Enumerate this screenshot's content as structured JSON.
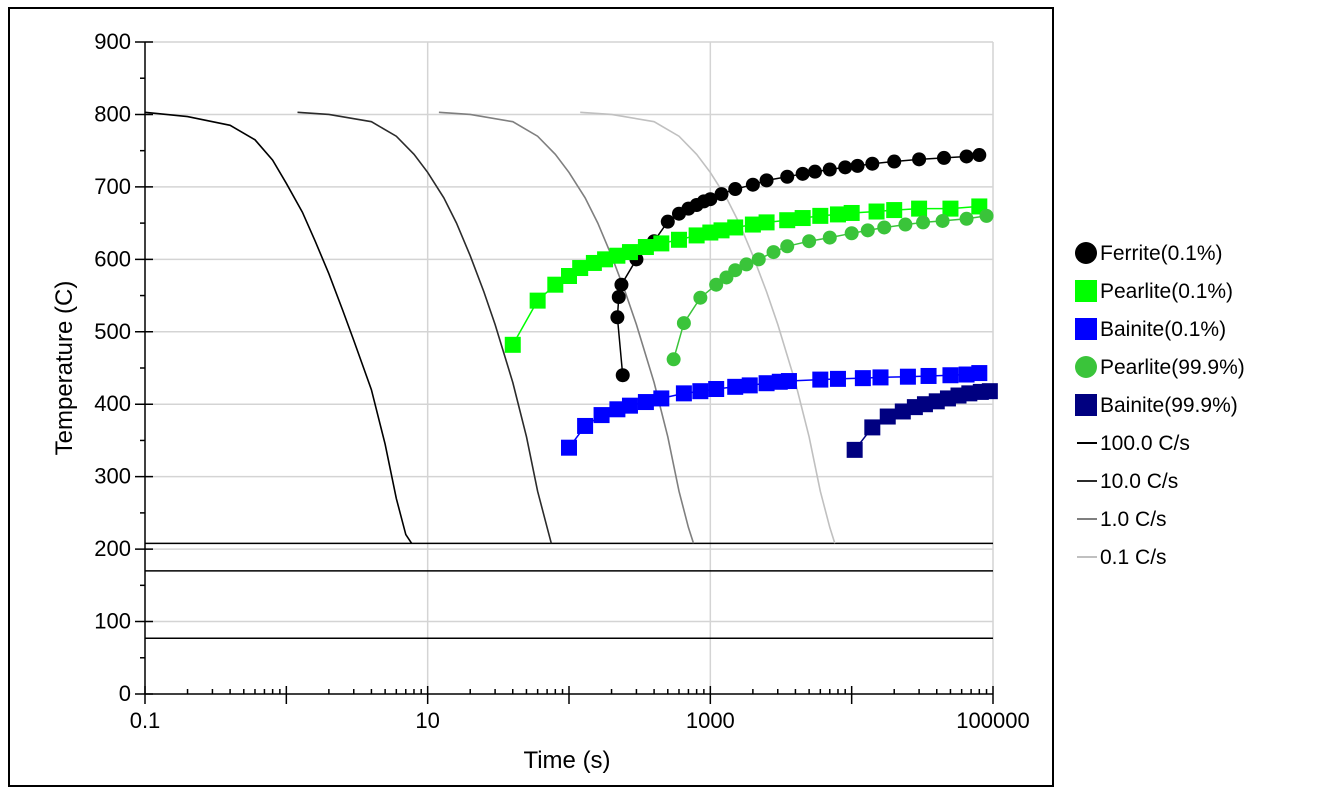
{
  "chart_data": {
    "type": "scatter",
    "title": "",
    "xlabel": "Time (s)",
    "ylabel": "Temperature (C)",
    "x_scale": "log",
    "xlim": [
      0.1,
      100000
    ],
    "ylim": [
      0,
      900
    ],
    "x_ticks": [
      0.1,
      10,
      1000,
      100000
    ],
    "x_tick_labels": [
      "0.1",
      "10",
      "1000",
      "100000"
    ],
    "y_ticks": [
      0,
      100,
      200,
      300,
      400,
      500,
      600,
      700,
      800,
      900
    ],
    "y_tick_labels": [
      "0",
      "100",
      "200",
      "300",
      "400",
      "500",
      "600",
      "700",
      "800",
      "900"
    ],
    "grid": true,
    "legend_position": "right",
    "horizontal_lines": [
      208,
      170,
      77
    ],
    "series": [
      {
        "name": "Ferrite(0.1%)",
        "marker": "circle",
        "color": "#000000",
        "points": [
          [
            240,
            440
          ],
          [
            220,
            520
          ],
          [
            225,
            548
          ],
          [
            235,
            565
          ],
          [
            300,
            600
          ],
          [
            400,
            625
          ],
          [
            500,
            652
          ],
          [
            600,
            663
          ],
          [
            700,
            670
          ],
          [
            800,
            675
          ],
          [
            900,
            680
          ],
          [
            1000,
            683
          ],
          [
            1200,
            690
          ],
          [
            1500,
            697
          ],
          [
            2000,
            703
          ],
          [
            2500,
            709
          ],
          [
            3500,
            714
          ],
          [
            4500,
            718
          ],
          [
            5500,
            721
          ],
          [
            7000,
            724
          ],
          [
            9000,
            727
          ],
          [
            11000,
            729
          ],
          [
            14000,
            732
          ],
          [
            20000,
            735
          ],
          [
            30000,
            738
          ],
          [
            45000,
            740
          ],
          [
            65000,
            742
          ],
          [
            80000,
            744
          ]
        ]
      },
      {
        "name": "Pearlite(0.1%)",
        "marker": "square",
        "color": "#00ff00",
        "points": [
          [
            40,
            482
          ],
          [
            60,
            543
          ],
          [
            80,
            565
          ],
          [
            100,
            577
          ],
          [
            120,
            588
          ],
          [
            150,
            595
          ],
          [
            180,
            600
          ],
          [
            220,
            605
          ],
          [
            270,
            610
          ],
          [
            350,
            617
          ],
          [
            450,
            622
          ],
          [
            600,
            627
          ],
          [
            800,
            633
          ],
          [
            1000,
            637
          ],
          [
            1200,
            640
          ],
          [
            1500,
            644
          ],
          [
            2000,
            648
          ],
          [
            2500,
            651
          ],
          [
            3500,
            654
          ],
          [
            4500,
            657
          ],
          [
            6000,
            660
          ],
          [
            8000,
            662
          ],
          [
            10000,
            664
          ],
          [
            15000,
            666
          ],
          [
            20000,
            668
          ],
          [
            30000,
            670
          ],
          [
            50000,
            670
          ],
          [
            80000,
            673
          ]
        ]
      },
      {
        "name": "Bainite(0.1%)",
        "marker": "square",
        "color": "#0000ff",
        "points": [
          [
            100,
            340
          ],
          [
            130,
            370
          ],
          [
            170,
            385
          ],
          [
            220,
            393
          ],
          [
            270,
            398
          ],
          [
            350,
            403
          ],
          [
            450,
            408
          ],
          [
            650,
            415
          ],
          [
            850,
            418
          ],
          [
            1100,
            421
          ],
          [
            1500,
            424
          ],
          [
            1900,
            426
          ],
          [
            2500,
            429
          ],
          [
            3100,
            431
          ],
          [
            3600,
            432
          ],
          [
            6000,
            434
          ],
          [
            8000,
            435
          ],
          [
            12000,
            436
          ],
          [
            16000,
            437
          ],
          [
            25000,
            438
          ],
          [
            35000,
            439
          ],
          [
            50000,
            440
          ],
          [
            65000,
            441
          ],
          [
            80000,
            443
          ]
        ]
      },
      {
        "name": "Pearlite(99.9%)",
        "marker": "circle",
        "color": "#3ac43a",
        "points": [
          [
            550,
            462
          ],
          [
            650,
            512
          ],
          [
            850,
            547
          ],
          [
            1100,
            565
          ],
          [
            1300,
            575
          ],
          [
            1500,
            585
          ],
          [
            1800,
            593
          ],
          [
            2200,
            600
          ],
          [
            2800,
            610
          ],
          [
            3500,
            618
          ],
          [
            5000,
            625
          ],
          [
            7000,
            630
          ],
          [
            10000,
            636
          ],
          [
            13000,
            640
          ],
          [
            17000,
            644
          ],
          [
            24000,
            648
          ],
          [
            32000,
            651
          ],
          [
            44000,
            653
          ],
          [
            65000,
            656
          ],
          [
            90000,
            660
          ]
        ]
      },
      {
        "name": "Bainite(99.9%)",
        "marker": "square",
        "color": "#000080",
        "points": [
          [
            10500,
            337
          ],
          [
            14000,
            368
          ],
          [
            18000,
            383
          ],
          [
            23000,
            390
          ],
          [
            28000,
            396
          ],
          [
            33000,
            400
          ],
          [
            40000,
            404
          ],
          [
            48000,
            408
          ],
          [
            57000,
            412
          ],
          [
            68000,
            415
          ],
          [
            82000,
            417
          ],
          [
            95000,
            418
          ]
        ]
      },
      {
        "name": "100.0 C/s",
        "marker": "line",
        "color": "#000000",
        "points": [
          [
            0.1,
            803
          ],
          [
            0.2,
            797
          ],
          [
            0.4,
            785
          ],
          [
            0.6,
            765
          ],
          [
            0.8,
            737
          ],
          [
            1,
            705
          ],
          [
            1.3,
            665
          ],
          [
            1.6,
            625
          ],
          [
            2,
            580
          ],
          [
            2.5,
            530
          ],
          [
            3,
            488
          ],
          [
            4,
            420
          ],
          [
            5,
            345
          ],
          [
            6,
            270
          ],
          [
            7,
            220
          ],
          [
            7.7,
            208
          ]
        ]
      },
      {
        "name": "10.0 C/s",
        "marker": "line",
        "color": "#2b2b2b",
        "points": [
          [
            1.2,
            803
          ],
          [
            2,
            800
          ],
          [
            4,
            790
          ],
          [
            6,
            770
          ],
          [
            8,
            745
          ],
          [
            10,
            720
          ],
          [
            13,
            685
          ],
          [
            16,
            650
          ],
          [
            20,
            605
          ],
          [
            25,
            555
          ],
          [
            30,
            510
          ],
          [
            40,
            430
          ],
          [
            50,
            355
          ],
          [
            60,
            280
          ],
          [
            70,
            230
          ],
          [
            75,
            208
          ]
        ]
      },
      {
        "name": "1.0 C/s",
        "marker": "line",
        "color": "#7f7f7f",
        "points": [
          [
            12,
            803
          ],
          [
            20,
            800
          ],
          [
            40,
            790
          ],
          [
            60,
            770
          ],
          [
            80,
            745
          ],
          [
            100,
            720
          ],
          [
            130,
            685
          ],
          [
            160,
            650
          ],
          [
            200,
            605
          ],
          [
            250,
            555
          ],
          [
            300,
            510
          ],
          [
            400,
            430
          ],
          [
            500,
            355
          ],
          [
            600,
            280
          ],
          [
            700,
            230
          ],
          [
            760,
            208
          ]
        ]
      },
      {
        "name": "0.1 C/s",
        "marker": "line",
        "color": "#c0c0c0",
        "points": [
          [
            120,
            803
          ],
          [
            200,
            800
          ],
          [
            400,
            790
          ],
          [
            600,
            770
          ],
          [
            800,
            745
          ],
          [
            1000,
            720
          ],
          [
            1300,
            685
          ],
          [
            1600,
            650
          ],
          [
            2000,
            605
          ],
          [
            2500,
            555
          ],
          [
            3000,
            510
          ],
          [
            4000,
            430
          ],
          [
            5000,
            355
          ],
          [
            6000,
            280
          ],
          [
            7000,
            230
          ],
          [
            7600,
            208
          ]
        ]
      }
    ]
  }
}
